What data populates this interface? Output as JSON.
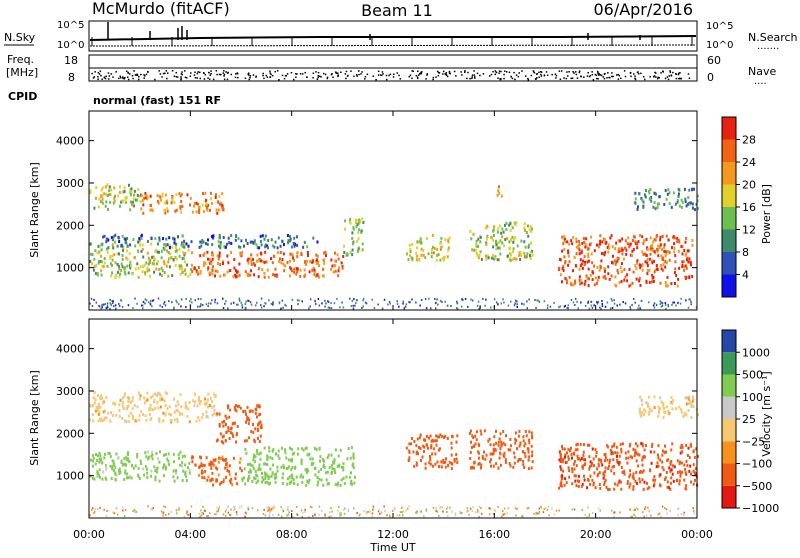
{
  "header": {
    "station": "McMurdo (fitACF)",
    "beam": "Beam 11",
    "date": "06/Apr/2016"
  },
  "strips": {
    "nsky_label": "N.Sky",
    "nsky_ticks": [
      "10^5",
      "10^0"
    ],
    "nsearch_label": "N.Search",
    "nsearch_ticks": [
      "10^5",
      "10^0"
    ],
    "freq_label_1": "Freq.",
    "freq_label_2": "[MHz]",
    "freq_ticks": [
      "18",
      "8"
    ],
    "nave_label": "Nave",
    "nave_ticks": [
      "60",
      "0"
    ],
    "cpid_label": "CPID",
    "cpid_text": "normal (fast) 151 RF",
    "dots": "......."
  },
  "colors": {
    "power": [
      "#1010e8",
      "#2f52b8",
      "#3f8a6a",
      "#6cbf4e",
      "#e2d12a",
      "#f39a1e",
      "#f06414",
      "#e62210"
    ],
    "velocity": [
      "#e21a12",
      "#f05a14",
      "#f7911e",
      "#f7c870",
      "#c9c9c9",
      "#7fcc50",
      "#3c9a58",
      "#2548a8"
    ]
  },
  "chart_data": [
    {
      "type": "heatmap",
      "title": "Power",
      "ylabel": "Slant Range [km]",
      "xlabel": "Time UT",
      "x_ticks": [
        "00:00",
        "04:00",
        "08:00",
        "12:00",
        "16:00",
        "20:00",
        "00:00"
      ],
      "y_ticks": [
        "1000",
        "2000",
        "3000",
        "4000"
      ],
      "ylim": [
        0,
        4700
      ],
      "xlim_hours": [
        0,
        24
      ],
      "colorbar": {
        "label": "Power [dB]",
        "ticks": [
          "4",
          "8",
          "12",
          "16",
          "20",
          "24",
          "28"
        ],
        "range": [
          0,
          32
        ]
      },
      "regions": [
        {
          "t0": 0.0,
          "t1": 2.0,
          "r0": 2400,
          "r1": 3000,
          "value": 16
        },
        {
          "t0": 2.0,
          "t1": 5.3,
          "r0": 2300,
          "r1": 2800,
          "value": 24
        },
        {
          "t0": 0.0,
          "t1": 4.0,
          "r0": 800,
          "r1": 1600,
          "value": 16
        },
        {
          "t0": 4.0,
          "t1": 10.0,
          "r0": 800,
          "r1": 1400,
          "value": 26
        },
        {
          "t0": 0.5,
          "t1": 9.0,
          "r0": 1500,
          "r1": 1800,
          "value": 8
        },
        {
          "t0": 10.0,
          "t1": 10.8,
          "r0": 1300,
          "r1": 2200,
          "value": 14
        },
        {
          "t0": 12.5,
          "t1": 14.2,
          "r0": 1200,
          "r1": 1800,
          "value": 18
        },
        {
          "t0": 15.0,
          "t1": 17.5,
          "r0": 1200,
          "r1": 2100,
          "value": 16
        },
        {
          "t0": 16.0,
          "t1": 16.3,
          "r0": 2700,
          "r1": 3000,
          "value": 22
        },
        {
          "t0": 18.5,
          "t1": 23.8,
          "r0": 600,
          "r1": 1800,
          "value": 27
        },
        {
          "t0": 21.5,
          "t1": 24.0,
          "r0": 2400,
          "r1": 2900,
          "value": 10
        }
      ]
    },
    {
      "type": "heatmap",
      "title": "Velocity",
      "ylabel": "Slant Range [km]",
      "xlabel": "Time UT",
      "x_ticks": [
        "00:00",
        "04:00",
        "08:00",
        "12:00",
        "16:00",
        "20:00",
        "00:00"
      ],
      "y_ticks": [
        "1000",
        "2000",
        "3000",
        "4000"
      ],
      "ylim": [
        0,
        4700
      ],
      "xlim_hours": [
        0,
        24
      ],
      "colorbar": {
        "label": "Velocity [m s⁻¹]",
        "ticks": [
          "1000",
          "500",
          "100",
          "25",
          "−25",
          "−100",
          "−500",
          "−1000"
        ]
      },
      "regions": [
        {
          "t0": 0.0,
          "t1": 5.0,
          "r0": 2300,
          "r1": 3000,
          "value": 0
        },
        {
          "t0": 5.0,
          "t1": 6.8,
          "r0": 1800,
          "r1": 2700,
          "value": -300
        },
        {
          "t0": 0.0,
          "t1": 4.0,
          "r0": 900,
          "r1": 1600,
          "value": 200
        },
        {
          "t0": 4.0,
          "t1": 6.0,
          "r0": 800,
          "r1": 1500,
          "value": -150
        },
        {
          "t0": 6.0,
          "t1": 10.5,
          "r0": 800,
          "r1": 1700,
          "value": 300
        },
        {
          "t0": 12.5,
          "t1": 14.5,
          "r0": 1200,
          "r1": 2000,
          "value": -300
        },
        {
          "t0": 15.0,
          "t1": 17.5,
          "r0": 1200,
          "r1": 2100,
          "value": -250
        },
        {
          "t0": 18.5,
          "t1": 24.0,
          "r0": 700,
          "r1": 1800,
          "value": -350
        },
        {
          "t0": 21.5,
          "t1": 24.0,
          "r0": 2400,
          "r1": 2900,
          "value": 0
        }
      ]
    }
  ]
}
